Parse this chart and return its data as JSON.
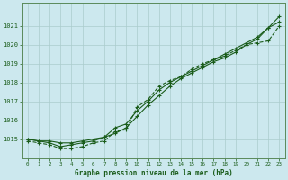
{
  "title": "Graphe pression niveau de la mer (hPa)",
  "bg_color": "#cce8ee",
  "grid_color": "#aacccc",
  "line_color": "#1a5c1a",
  "xlim": [
    -0.5,
    23.5
  ],
  "ylim": [
    1014.0,
    1022.2
  ],
  "yticks": [
    1015,
    1016,
    1017,
    1018,
    1019,
    1020,
    1021
  ],
  "xticks": [
    0,
    1,
    2,
    3,
    4,
    5,
    6,
    7,
    8,
    9,
    10,
    11,
    12,
    13,
    14,
    15,
    16,
    17,
    18,
    19,
    20,
    21,
    22,
    23
  ],
  "series1": [
    1015.0,
    1014.9,
    1014.9,
    1014.8,
    1014.8,
    1014.9,
    1015.0,
    1015.1,
    1015.3,
    1015.6,
    1016.2,
    1016.8,
    1017.3,
    1017.8,
    1018.2,
    1018.5,
    1018.8,
    1019.1,
    1019.3,
    1019.6,
    1020.0,
    1020.3,
    1020.9,
    1021.5
  ],
  "series2": [
    1015.0,
    1014.9,
    1014.8,
    1014.6,
    1014.7,
    1014.8,
    1014.9,
    1015.1,
    1015.6,
    1015.8,
    1016.5,
    1017.0,
    1017.6,
    1018.0,
    1018.3,
    1018.6,
    1018.9,
    1019.2,
    1019.5,
    1019.8,
    1020.1,
    1020.4,
    1020.9,
    1021.2
  ],
  "series3": [
    1014.9,
    1014.8,
    1014.7,
    1014.5,
    1014.5,
    1014.6,
    1014.8,
    1014.9,
    1015.4,
    1015.5,
    1016.7,
    1017.1,
    1017.8,
    1018.1,
    1018.3,
    1018.7,
    1019.0,
    1019.2,
    1019.4,
    1019.7,
    1020.0,
    1020.1,
    1020.2,
    1021.0
  ]
}
